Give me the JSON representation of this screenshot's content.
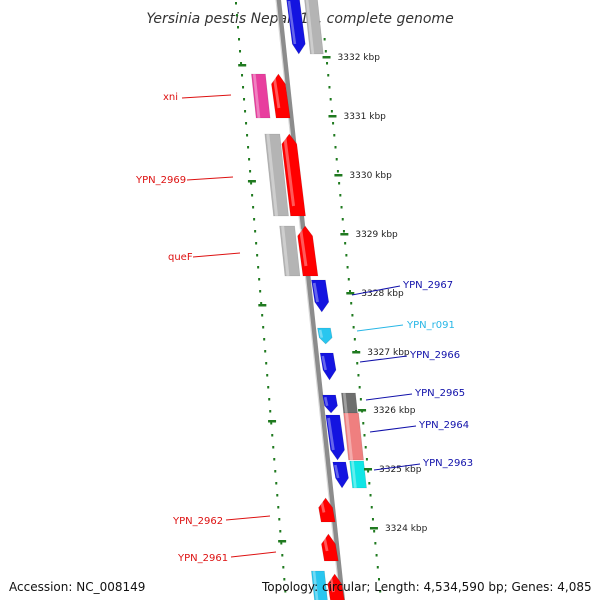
{
  "title": "Yersinia pestis Nepal516, complete genome",
  "footer": {
    "accession": "Accession: NC_008149",
    "summary": "Topology: circular; Length: 4,534,590 bp; Genes: 4,085"
  },
  "colors": {
    "backbone": "#8c8c8c",
    "tick_green": "#1f7a1f",
    "red": "#ff0000",
    "magenta": "#e83e9e",
    "blue": "#1414e0",
    "cyan": "#29c6ef",
    "gray": "#b4b4b4",
    "dark_gray": "#6e6e6e",
    "salmon": "#ef7f7f",
    "aqua": "#10e5e5",
    "label_red": "#dd1111",
    "label_blue": "#1111aa",
    "label_cyan": "#27b6e6"
  },
  "kbp_ticks": [
    "3332 kbp",
    "3331 kbp",
    "3330 kbp",
    "3329 kbp",
    "3328 kbp",
    "3327 kbp",
    "3326 kbp",
    "3325 kbp",
    "3324 kbp"
  ],
  "gene_labels": [
    {
      "text": "xni",
      "color": "red"
    },
    {
      "text": "YPN_2969",
      "color": "red"
    },
    {
      "text": "queF",
      "color": "red"
    },
    {
      "text": "YPN_2967",
      "color": "blue"
    },
    {
      "text": "YPN_r091",
      "color": "cyan"
    },
    {
      "text": "YPN_2966",
      "color": "blue"
    },
    {
      "text": "YPN_2965",
      "color": "blue"
    },
    {
      "text": "YPN_2964",
      "color": "blue"
    },
    {
      "text": "YPN_2963",
      "color": "blue"
    },
    {
      "text": "YPN_2962",
      "color": "red"
    },
    {
      "text": "YPN_2961",
      "color": "red"
    }
  ]
}
